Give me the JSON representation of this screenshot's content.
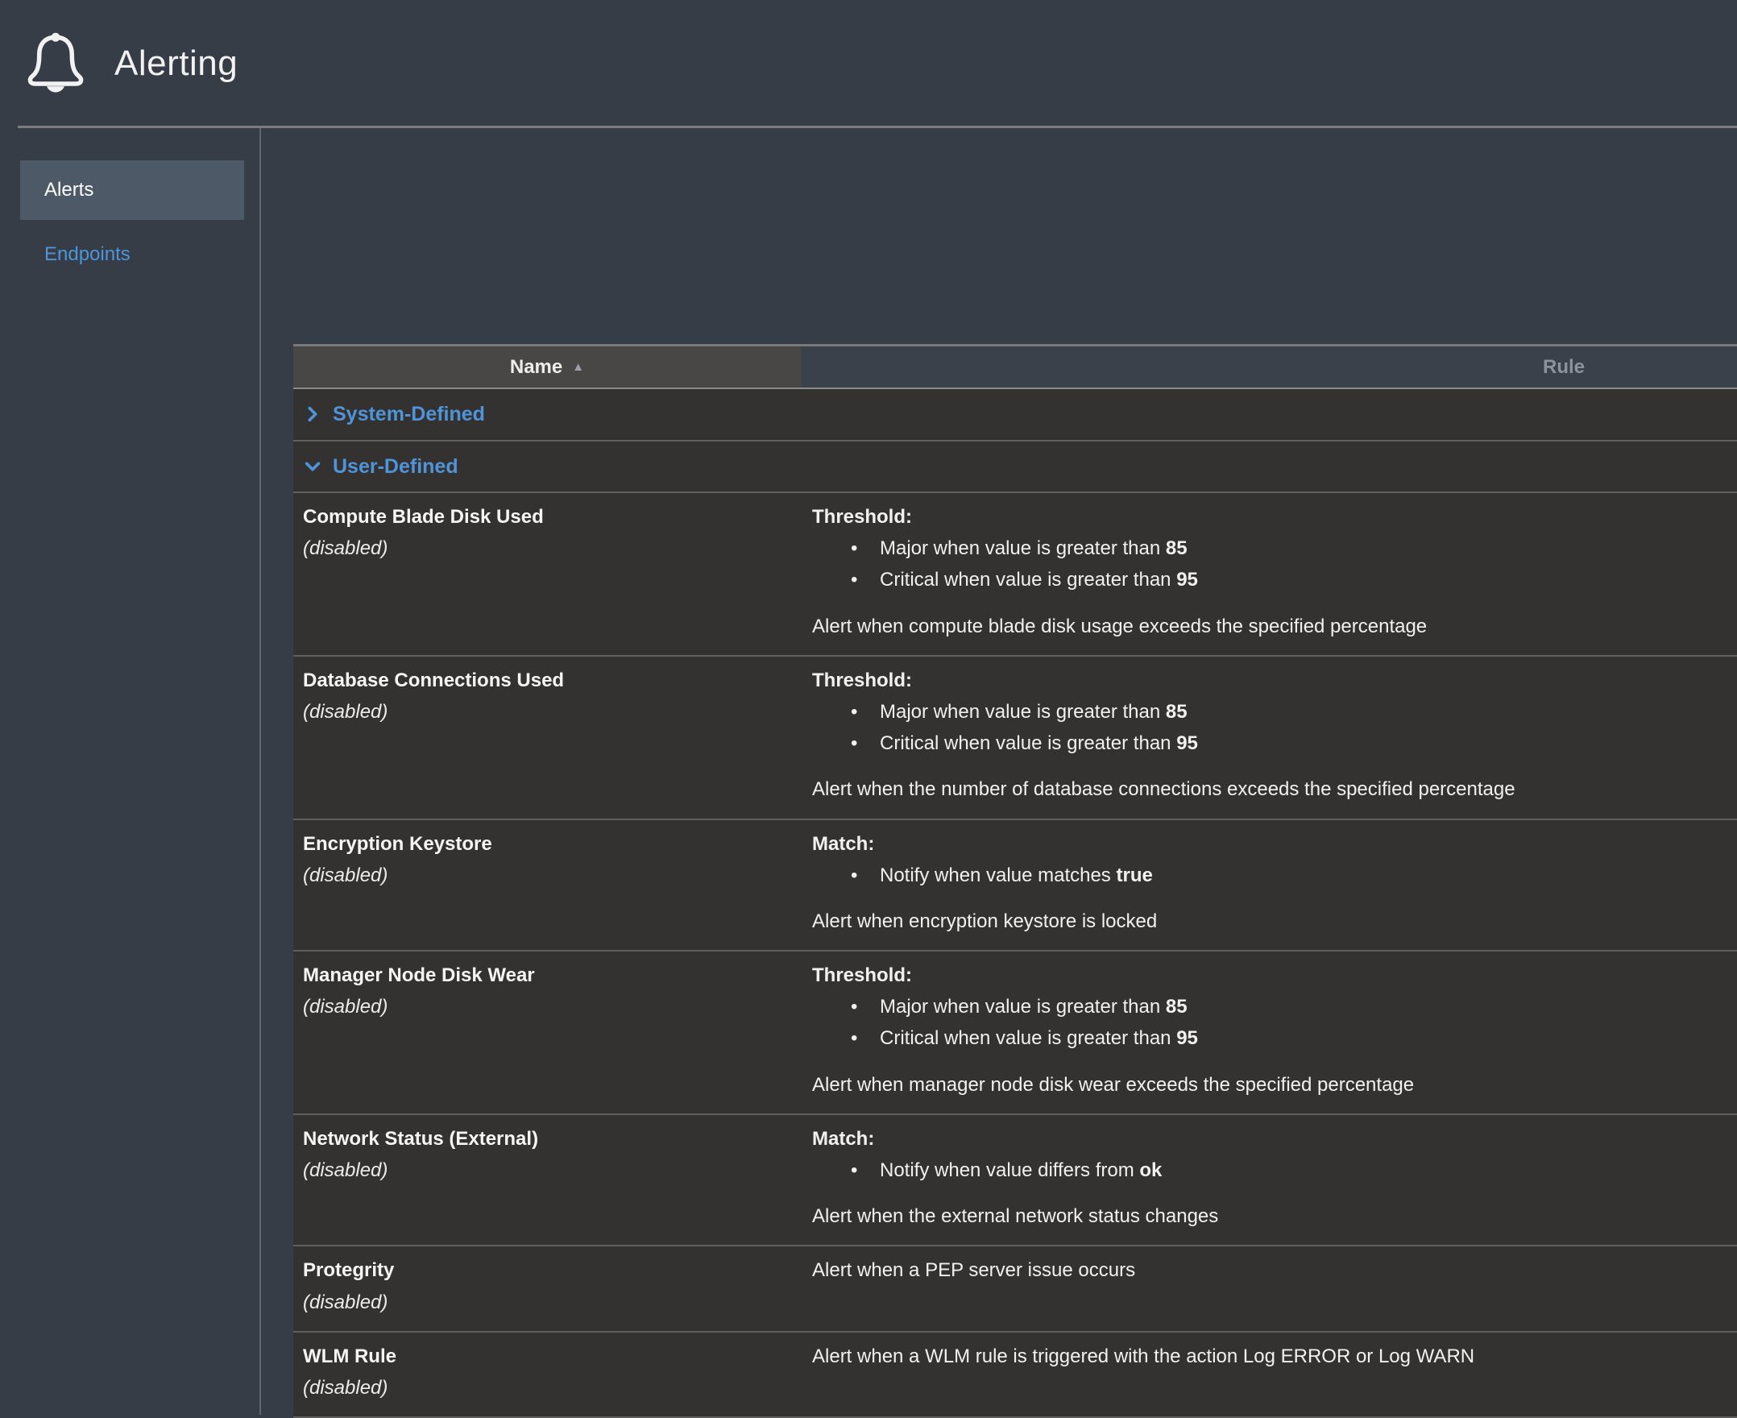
{
  "header": {
    "title": "Alerting",
    "icon": "bell"
  },
  "sidebar": {
    "items": [
      {
        "label": "Alerts",
        "active": true
      },
      {
        "label": "Endpoints",
        "active": false
      }
    ]
  },
  "table": {
    "columns": {
      "name": "Name",
      "rule": "Rule"
    },
    "sort": {
      "column": "Name",
      "direction": "ascending",
      "icon": "▲"
    },
    "groups": [
      {
        "label": "System-Defined",
        "expanded": false
      },
      {
        "label": "User-Defined",
        "expanded": true
      }
    ],
    "rows": [
      {
        "name": "Compute Blade Disk Used",
        "status": "(disabled)",
        "rule_type": "Threshold:",
        "bullets": [
          {
            "prefix": "Major when value is greater than ",
            "value": "85"
          },
          {
            "prefix": "Critical when value is greater than ",
            "value": "95"
          }
        ],
        "description": "Alert when compute blade disk usage exceeds the specified percentage"
      },
      {
        "name": "Database Connections Used",
        "status": "(disabled)",
        "rule_type": "Threshold:",
        "bullets": [
          {
            "prefix": "Major when value is greater than ",
            "value": "85"
          },
          {
            "prefix": "Critical when value is greater than ",
            "value": "95"
          }
        ],
        "description": "Alert when the number of database connections exceeds the specified percentage"
      },
      {
        "name": "Encryption Keystore",
        "status": "(disabled)",
        "rule_type": "Match:",
        "bullets": [
          {
            "prefix": "Notify when value matches ",
            "value": "true"
          }
        ],
        "description": "Alert when encryption keystore is locked"
      },
      {
        "name": "Manager Node Disk Wear",
        "status": "(disabled)",
        "rule_type": "Threshold:",
        "bullets": [
          {
            "prefix": "Major when value is greater than ",
            "value": "85"
          },
          {
            "prefix": "Critical when value is greater than ",
            "value": "95"
          }
        ],
        "description": "Alert when manager node disk wear exceeds the specified percentage"
      },
      {
        "name": "Network Status (External)",
        "status": "(disabled)",
        "rule_type": "Match:",
        "bullets": [
          {
            "prefix": "Notify when value differs from ",
            "value": "ok"
          }
        ],
        "description": "Alert when the external network status changes"
      },
      {
        "name": "Protegrity",
        "status": "(disabled)",
        "rule_type": "",
        "bullets": [],
        "description": "Alert when a PEP server issue occurs"
      },
      {
        "name": "WLM Rule",
        "status": "(disabled)",
        "rule_type": "",
        "bullets": [],
        "description": "Alert when a WLM rule is triggered with the action Log ERROR or Log WARN"
      }
    ]
  },
  "colors": {
    "accent_blue": "#4f94d9",
    "page_bg": "#363d47",
    "table_bg": "#343231",
    "selected_nav_bg": "#4d5967",
    "name_header_bg": "#494745"
  }
}
